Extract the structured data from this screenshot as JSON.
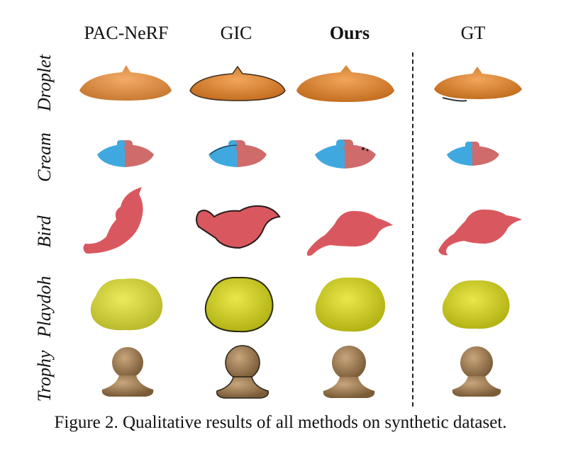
{
  "columns": [
    "PAC-NeRF",
    "GIC",
    "Ours",
    "GT"
  ],
  "rows": [
    "Droplet",
    "Cream",
    "Bird",
    "Playdoh",
    "Trophy"
  ],
  "caption": "Figure 2. Qualitative results of all methods on synthetic dataset.",
  "colors": {
    "droplet": "#e08a3a",
    "cream_blue": "#3fa9df",
    "cream_red": "#cf6b6b",
    "bird": "#d9585f",
    "playdoh": "#cfcf2a",
    "trophy": "#9c7d57"
  }
}
